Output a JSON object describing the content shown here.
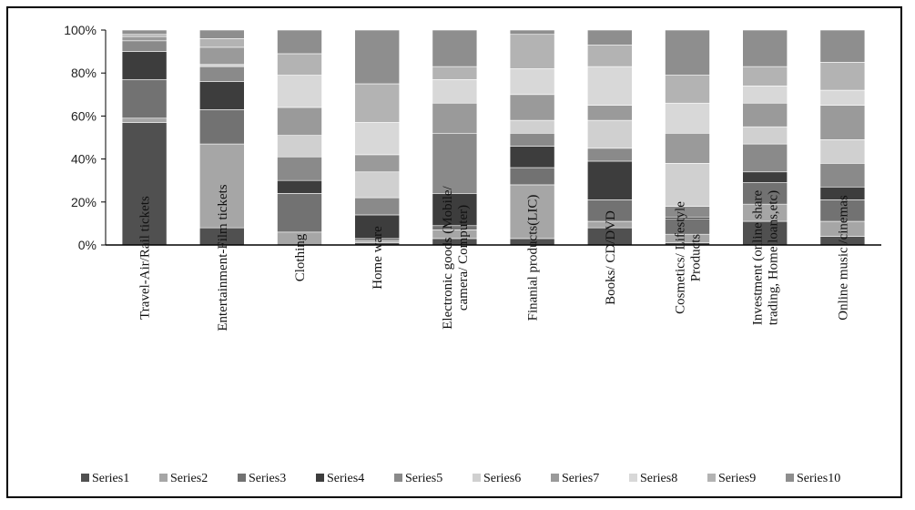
{
  "chart_data": {
    "type": "bar",
    "stacked": true,
    "percent_stacked": true,
    "title": "",
    "xlabel": "",
    "ylabel": "",
    "ylim": [
      0,
      100
    ],
    "yticks": [
      "0%",
      "20%",
      "40%",
      "60%",
      "80%",
      "100%"
    ],
    "grid": false,
    "legend_position": "bottom",
    "categories": [
      [
        "Travel-Air/Rail tickets"
      ],
      [
        "Entertainment-Film tickets"
      ],
      [
        "Clothing"
      ],
      [
        "Home ware"
      ],
      [
        "Electronic goods (Mobile/",
        "camera/ Computer)"
      ],
      [
        "Finanial products(LIC)"
      ],
      [
        "Books/ CD/DVD"
      ],
      [
        "Cosmetics/ Lifestyle",
        "Products"
      ],
      [
        "Investment   (online share",
        "trading, Home loans,etc)"
      ],
      [
        "Online music /cinemas"
      ]
    ],
    "series": [
      {
        "name": "Series1",
        "color": "#505050",
        "values": [
          57,
          8,
          0,
          1,
          3,
          3,
          8,
          1,
          11,
          4
        ]
      },
      {
        "name": "Series2",
        "color": "#a6a6a6",
        "values": [
          2,
          39,
          6,
          1,
          4,
          25,
          3,
          4,
          8,
          7
        ]
      },
      {
        "name": "Series3",
        "color": "#727272",
        "values": [
          18,
          16,
          18,
          1,
          2,
          8,
          10,
          7,
          10,
          10
        ]
      },
      {
        "name": "Series4",
        "color": "#3d3d3d",
        "values": [
          13,
          13,
          6,
          11,
          15,
          10,
          18,
          1,
          5,
          6
        ]
      },
      {
        "name": "Series5",
        "color": "#8a8a8a",
        "values": [
          5,
          7,
          11,
          8,
          28,
          6,
          6,
          5,
          13,
          11
        ]
      },
      {
        "name": "Series6",
        "color": "#d0d0d0",
        "values": [
          0,
          1,
          10,
          12,
          0,
          6,
          13,
          20,
          8,
          11
        ]
      },
      {
        "name": "Series7",
        "color": "#9a9a9a",
        "values": [
          2,
          8,
          13,
          8,
          14,
          12,
          7,
          14,
          11,
          16
        ]
      },
      {
        "name": "Series8",
        "color": "#d8d8d8",
        "values": [
          0,
          0,
          15,
          15,
          11,
          12,
          18,
          14,
          8,
          7
        ]
      },
      {
        "name": "Series9",
        "color": "#b3b3b3",
        "values": [
          1,
          4,
          10,
          18,
          6,
          16,
          10,
          13,
          9,
          13
        ]
      },
      {
        "name": "Series10",
        "color": "#8e8e8e",
        "values": [
          2,
          4,
          11,
          25,
          17,
          2,
          7,
          21,
          17,
          15
        ]
      }
    ]
  }
}
